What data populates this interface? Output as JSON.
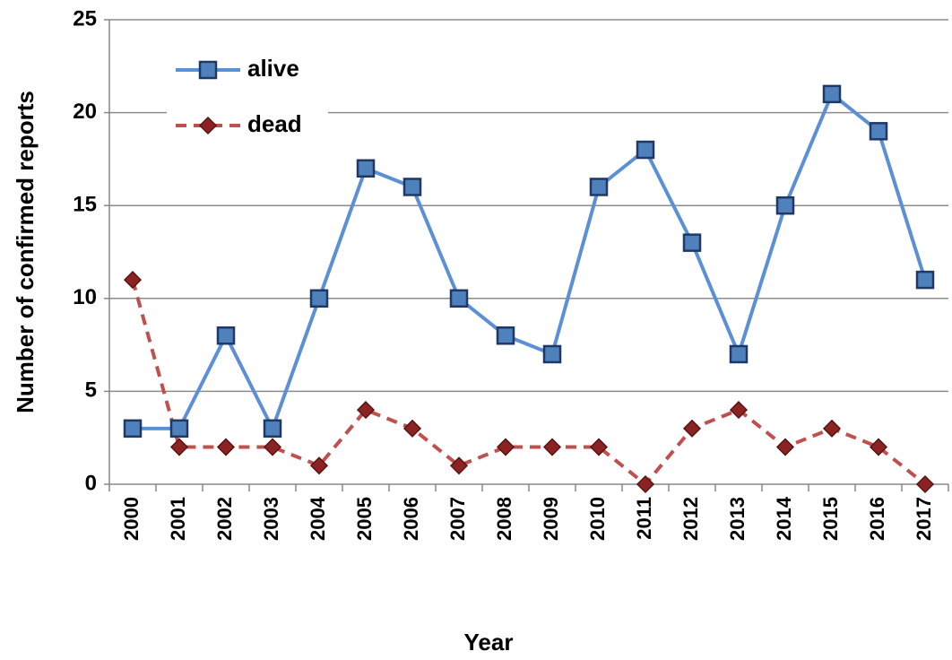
{
  "chart_data": {
    "type": "line",
    "categories": [
      "2000",
      "2001",
      "2002",
      "2003",
      "2004",
      "2005",
      "2006",
      "2007",
      "2008",
      "2009",
      "2010",
      "2011",
      "2012",
      "2013",
      "2014",
      "2015",
      "2016",
      "2017"
    ],
    "series": [
      {
        "name": "alive",
        "color": "#4f81bd",
        "values": [
          3,
          3,
          8,
          3,
          10,
          17,
          16,
          10,
          8,
          7,
          16,
          18,
          13,
          7,
          15,
          21,
          19,
          11
        ]
      },
      {
        "name": "dead",
        "color": "#c0504d",
        "values": [
          11,
          2,
          2,
          2,
          1,
          4,
          3,
          1,
          2,
          2,
          2,
          0,
          3,
          4,
          2,
          3,
          2,
          0
        ]
      }
    ],
    "x_label": "Year",
    "y_label": "Number of confirmed reports",
    "ylim": [
      0,
      25
    ],
    "yticks": [
      0,
      5,
      10,
      15,
      20,
      25
    ],
    "grid": true,
    "legend": "top-left"
  }
}
